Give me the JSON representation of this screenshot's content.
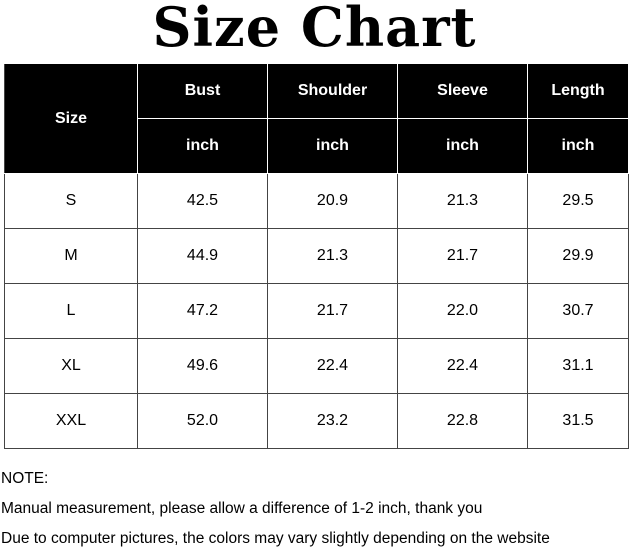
{
  "title": "Size Chart",
  "table": {
    "size_header": "Size",
    "columns": [
      {
        "label": "Bust",
        "unit": "inch"
      },
      {
        "label": "Shoulder",
        "unit": "inch"
      },
      {
        "label": "Sleeve",
        "unit": "inch"
      },
      {
        "label": "Length",
        "unit": "inch"
      }
    ],
    "rows": [
      {
        "size": "S",
        "values": [
          "42.5",
          "20.9",
          "21.3",
          "29.5"
        ]
      },
      {
        "size": "M",
        "values": [
          "44.9",
          "21.3",
          "21.7",
          "29.9"
        ]
      },
      {
        "size": "L",
        "values": [
          "47.2",
          "21.7",
          "22.0",
          "30.7"
        ]
      },
      {
        "size": "XL",
        "values": [
          "49.6",
          "22.4",
          "22.4",
          "31.1"
        ]
      },
      {
        "size": "XXL",
        "values": [
          "52.0",
          "23.2",
          "22.8",
          "31.5"
        ]
      }
    ]
  },
  "notes": {
    "heading": "NOTE:",
    "lines": [
      "Manual measurement, please allow a difference of 1-2 inch, thank you",
      "Due to computer pictures, the colors may vary slightly depending on the website"
    ]
  }
}
